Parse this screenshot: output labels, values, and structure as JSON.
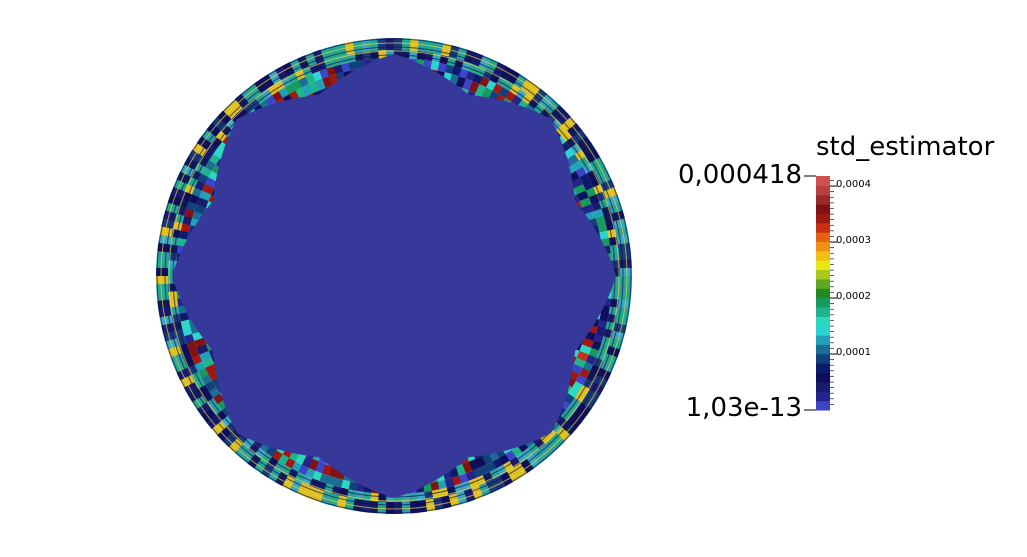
{
  "view": {
    "background": "#ffffff",
    "interior_color": "#36399a"
  },
  "scalar_bar": {
    "title": "std_estimator",
    "range_max_label": "0,000418",
    "range_min_label": "1,03e-13",
    "range": [
      1.03e-13,
      0.000418
    ],
    "ticks": [
      {
        "value": 0.0004,
        "label": "0,0004"
      },
      {
        "value": 0.0003,
        "label": "0,0003"
      },
      {
        "value": 0.0002,
        "label": "0,0002"
      },
      {
        "value": 0.0001,
        "label": "0,0001"
      }
    ],
    "colormap": [
      "#3c44c8",
      "#23238a",
      "#1a1a6e",
      "#0e0e5c",
      "#0c1a6e",
      "#12407e",
      "#1a6e96",
      "#21a0b8",
      "#2bd4d0",
      "#2dd8c0",
      "#1fb48a",
      "#179a5e",
      "#238a23",
      "#5ea823",
      "#a8c81a",
      "#e8e812",
      "#f0c012",
      "#f09012",
      "#e86012",
      "#c83012",
      "#a01812",
      "#801212",
      "#9a2a2a",
      "#b84040",
      "#d05050"
    ]
  }
}
